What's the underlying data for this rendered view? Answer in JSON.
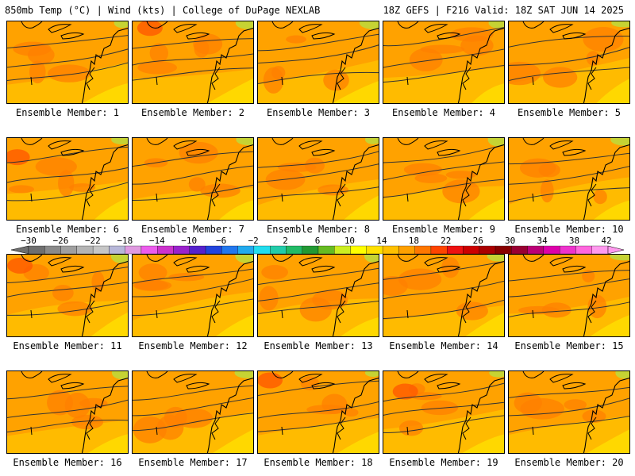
{
  "header": {
    "left": "850mb Temp (°C) | Wind (kts) | College of DuPage NEXLAB",
    "right": "18Z GEFS | F216 Valid: 18Z SAT JUN 14 2025"
  },
  "member_label_prefix": "Ensemble Member: ",
  "members": [
    "1",
    "2",
    "3",
    "4",
    "5",
    "6",
    "7",
    "8",
    "9",
    "10",
    "11",
    "12",
    "13",
    "14",
    "15",
    "16",
    "17",
    "18",
    "19",
    "20"
  ],
  "colorbar": {
    "ticks": [
      "−30",
      "−26",
      "−22",
      "−18",
      "−14",
      "−10",
      "−6",
      "−2",
      "2",
      "6",
      "10",
      "14",
      "18",
      "22",
      "26",
      "30",
      "34",
      "38",
      "42"
    ],
    "colors": [
      "#6f6f6f",
      "#8a8a8a",
      "#9f9f9f",
      "#b4b4b4",
      "#c6c6c6",
      "#b7b7d9",
      "#e09ae0",
      "#ec5cec",
      "#cc33cc",
      "#9a22cc",
      "#5522cc",
      "#2244dd",
      "#2277ee",
      "#22aaee",
      "#22ddee",
      "#22ccaa",
      "#22bb66",
      "#229933",
      "#66bb22",
      "#ccee22",
      "#ffff00",
      "#ffe000",
      "#ffc000",
      "#ffa000",
      "#ff7700",
      "#ff4400",
      "#ee1111",
      "#cc0000",
      "#aa0000",
      "#880000",
      "#990033",
      "#bb0077",
      "#dd00aa",
      "#ee33cc",
      "#ff66dd",
      "#ff99ee"
    ]
  },
  "panel_colors": {
    "base": "#ffa200",
    "warm": "#ff8000",
    "hot": "#ff5a00",
    "cool": "#ffc000",
    "cooler": "#ffe000",
    "green": "#b8e040",
    "contour": "#333333",
    "coast": "#000000"
  }
}
